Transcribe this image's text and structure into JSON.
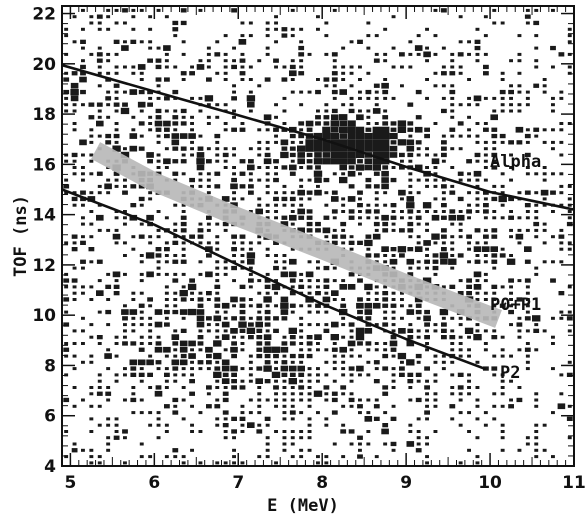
{
  "chart_data": {
    "type": "scatter",
    "title": "",
    "xlabel": "E (MeV)",
    "ylabel": "TOF (ns)",
    "xlim": [
      4.9,
      11
    ],
    "ylim": [
      4,
      22.3
    ],
    "x_ticks": [
      "5",
      "6",
      "7",
      "8",
      "9",
      "10",
      "11"
    ],
    "y_ticks": [
      "4",
      "6",
      "8",
      "10",
      "12",
      "14",
      "16",
      "18",
      "20",
      "22"
    ],
    "grid": false,
    "legend": "none",
    "point_color": "#1a1a1a",
    "curves": [
      {
        "label": "Alpha",
        "style": "black line",
        "color": "#111111",
        "points": [
          [
            4.9,
            19.95
          ],
          [
            6,
            18.9
          ],
          [
            7,
            17.95
          ],
          [
            8,
            17.0
          ],
          [
            9,
            15.9
          ],
          [
            10,
            14.9
          ],
          [
            11,
            14.2
          ]
        ]
      },
      {
        "label": "P0+P1",
        "style": "gray band",
        "color": "#b8b8b8",
        "points": [
          [
            5.3,
            16.55
          ],
          [
            6,
            15.3
          ],
          [
            7,
            13.9
          ],
          [
            8,
            12.6
          ],
          [
            9,
            11.25
          ],
          [
            10.1,
            9.85
          ]
        ]
      },
      {
        "label": "P2",
        "style": "black line",
        "color": "#111111",
        "points": [
          [
            4.9,
            15.0
          ],
          [
            6,
            13.6
          ],
          [
            7,
            12.0
          ],
          [
            8,
            10.45
          ],
          [
            9,
            9.05
          ],
          [
            9.95,
            7.85
          ]
        ]
      }
    ],
    "clusters": [
      {
        "x": 8.35,
        "y": 16.8,
        "sx": 0.38,
        "sy": 0.55,
        "n": 420
      },
      {
        "x": 7.2,
        "y": 8.5,
        "sx": 1.4,
        "sy": 2.0,
        "n": 900
      },
      {
        "x": 6.5,
        "y": 14.8,
        "sx": 1.2,
        "sy": 2.2,
        "n": 500
      },
      {
        "x": 8.5,
        "y": 13.0,
        "sx": 1.1,
        "sy": 2.6,
        "n": 450
      },
      {
        "x": 5.5,
        "y": 18.5,
        "sx": 0.6,
        "sy": 2.5,
        "n": 200
      },
      {
        "x": 10.0,
        "y": 16.0,
        "sx": 0.9,
        "sy": 2.0,
        "n": 250
      },
      {
        "x": 7.8,
        "y": 19.5,
        "sx": 1.5,
        "sy": 1.2,
        "n": 180
      },
      {
        "x": 9.5,
        "y": 10.5,
        "sx": 0.8,
        "sy": 1.8,
        "n": 180
      }
    ]
  }
}
